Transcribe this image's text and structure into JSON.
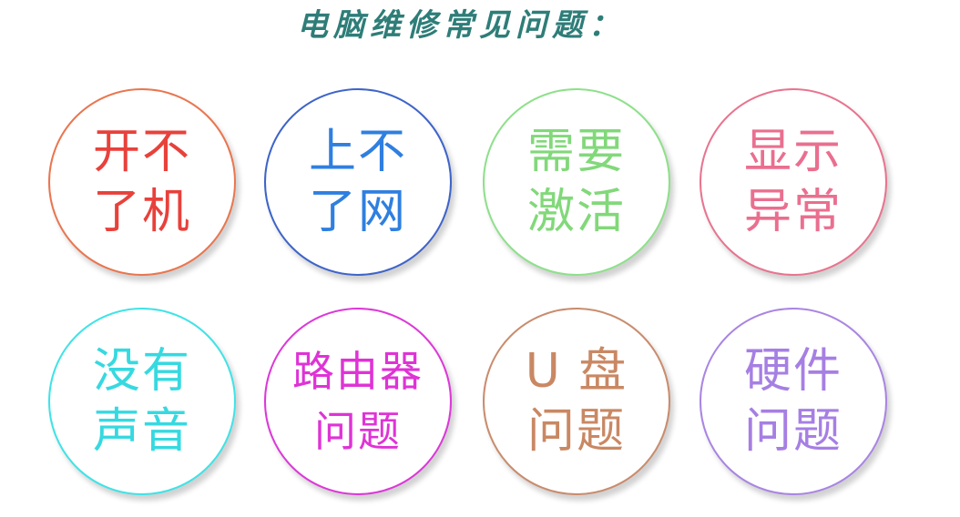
{
  "title": "电脑维修常见问题：",
  "items": [
    {
      "line1": "开不",
      "line2": "了机",
      "color": "#e8413b",
      "border": "#e9764f"
    },
    {
      "line1": "上不",
      "line2": "了网",
      "color": "#2f7fe0",
      "border": "#3e64c9"
    },
    {
      "line1": "需要",
      "line2": "激活",
      "color": "#82d87a",
      "border": "#8ee08a"
    },
    {
      "line1": "显示",
      "line2": "异常",
      "color": "#ea6f8f",
      "border": "#e8748f"
    },
    {
      "line1": "没有",
      "line2": "声音",
      "color": "#36d9e0",
      "border": "#3fe3e6"
    },
    {
      "line1": "路由器",
      "line2": "问题",
      "color": "#df33d6",
      "border": "#dc38d8"
    },
    {
      "line1": "U 盘",
      "line2": "问题",
      "color": "#c98863",
      "border": "#c98c6d"
    },
    {
      "line1": "硬件",
      "line2": "问题",
      "color": "#a67fe3",
      "border": "#a985e3"
    }
  ]
}
